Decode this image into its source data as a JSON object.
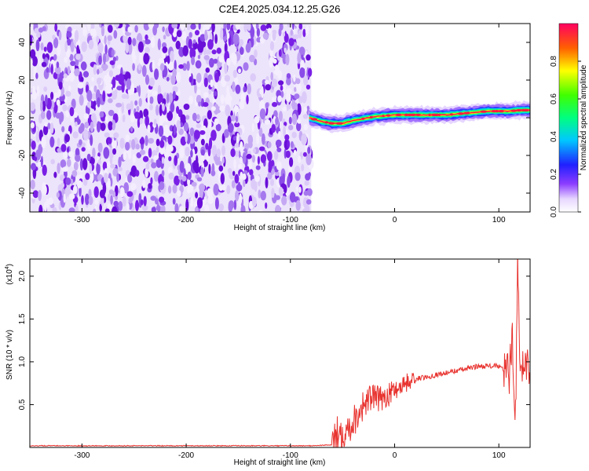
{
  "title": "C2E4.2025.034.12.25.G26",
  "colors": {
    "spectrogram_noise": "#7a1fe6",
    "snr_line": "#e8332f",
    "axis": "#000000"
  },
  "chart_data": [
    {
      "type": "heatmap",
      "xlabel": "Height of straight line (km)",
      "ylabel": "Frequency (Hz)",
      "xlim": [
        -350,
        130
      ],
      "ylim": [
        -50,
        50
      ],
      "xticks": [
        -300,
        -200,
        -100,
        0,
        100
      ],
      "yticks": [
        -40,
        -20,
        0,
        20,
        40
      ],
      "noise_region_x": [
        -350,
        -80
      ],
      "signal_track": {
        "x": [
          -82,
          -70,
          -60,
          -50,
          -40,
          -30,
          -20,
          -10,
          0,
          10,
          20,
          30,
          40,
          50,
          60,
          70,
          80,
          90,
          100,
          110,
          120,
          130
        ],
        "freq": [
          0.0,
          -2.0,
          -3.0,
          -3.0,
          -1.5,
          -0.5,
          0.5,
          1.0,
          1.5,
          1.5,
          1.5,
          1.5,
          1.5,
          1.5,
          2.0,
          2.5,
          3.0,
          3.5,
          3.5,
          3.5,
          4.0,
          4.0
        ]
      },
      "colorbar": {
        "label": "Normalized spectral amplitude",
        "ticks": [
          0.0,
          0.2,
          0.4,
          0.6,
          0.8
        ],
        "range": [
          0,
          1
        ]
      }
    },
    {
      "type": "line",
      "xlabel": "Height of straight line (km)",
      "ylabel": "SNR (10 * v/v)",
      "yscale_label": "(x10",
      "yscale_exp": "4",
      "yscale_close": ")",
      "xlim": [
        -350,
        130
      ],
      "ylim": [
        0,
        2.2
      ],
      "xticks": [
        -300,
        -200,
        -100,
        0,
        100
      ],
      "yticks": [
        0.5,
        1.0,
        1.5,
        2.0
      ],
      "ytick_labels": [
        "0.5",
        "1.0",
        "1.5",
        "2.0"
      ],
      "x": [
        -350,
        -100,
        -80,
        -60,
        -55,
        -50,
        -45,
        -40,
        -35,
        -30,
        -25,
        -20,
        -15,
        -10,
        -5,
        0,
        10,
        20,
        30,
        40,
        50,
        60,
        70,
        80,
        90,
        100,
        105,
        110,
        113,
        116,
        118,
        120,
        125,
        130
      ],
      "y": [
        0.02,
        0.02,
        0.02,
        0.03,
        0.15,
        0.2,
        0.22,
        0.3,
        0.4,
        0.5,
        0.55,
        0.6,
        0.55,
        0.6,
        0.62,
        0.68,
        0.75,
        0.8,
        0.82,
        0.85,
        0.87,
        0.9,
        0.92,
        0.95,
        0.95,
        0.95,
        0.9,
        0.85,
        1.3,
        0.35,
        2.2,
        0.95,
        0.97,
        0.98
      ],
      "noise_amplitude": 0.08
    }
  ]
}
